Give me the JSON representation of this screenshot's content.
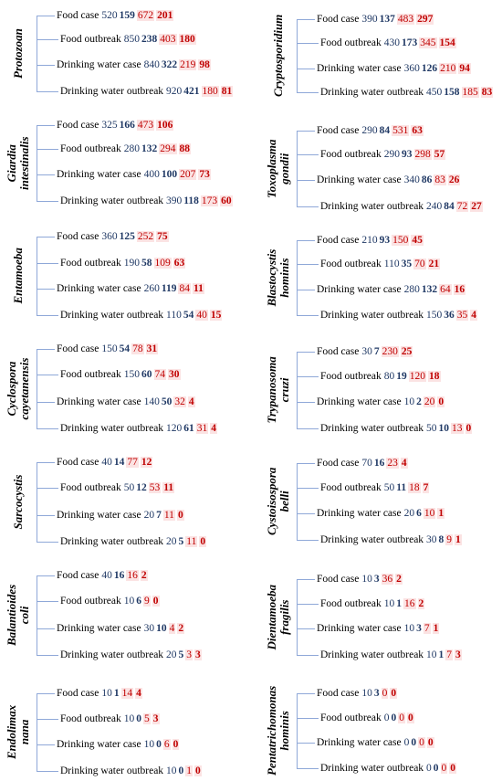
{
  "colors": {
    "line": "#8fa8d8",
    "value_plain": "#1f3864",
    "value_bold": "#1f3864",
    "value_red": "#c00000",
    "value_red_bold": "#c00000",
    "highlight": "#fbe3e3"
  },
  "panels": [
    {
      "name": [
        "Protozoan"
      ],
      "rows": [
        {
          "label": "Food case",
          "values": [
            "520",
            "159",
            "672",
            "201"
          ]
        },
        {
          "label": "Food outbreak",
          "values": [
            "850",
            "238",
            "403",
            "180"
          ]
        },
        {
          "label": "Drinking water case",
          "values": [
            "840",
            "322",
            "219",
            "98"
          ]
        },
        {
          "label": "Drinking water outbreak",
          "values": [
            "920",
            "421",
            "180",
            "81"
          ]
        }
      ]
    },
    {
      "name": [
        "Cryptosporidium"
      ],
      "rows": [
        {
          "label": "Food case",
          "values": [
            "390",
            "137",
            "483",
            "297"
          ]
        },
        {
          "label": "Food outbreak",
          "values": [
            "430",
            "173",
            "345",
            "154"
          ]
        },
        {
          "label": "Drinking water case",
          "values": [
            "360",
            "126",
            "210",
            "94"
          ]
        },
        {
          "label": "Drinking water outbreak",
          "values": [
            "450",
            "158",
            "185",
            "83"
          ]
        }
      ]
    },
    {
      "name": [
        "Giardia",
        "intestinalis"
      ],
      "rows": [
        {
          "label": "Food case",
          "values": [
            "325",
            "166",
            "473",
            "106"
          ]
        },
        {
          "label": "Food outbreak",
          "values": [
            "280",
            "132",
            "294",
            "88"
          ]
        },
        {
          "label": "Drinking water case",
          "values": [
            "400",
            "100",
            "207",
            "73"
          ]
        },
        {
          "label": "Drinking water outbreak",
          "values": [
            "390",
            "118",
            "173",
            "60"
          ]
        }
      ]
    },
    {
      "name": [
        "Toxoplasma",
        "gondii"
      ],
      "rows": [
        {
          "label": "Food case",
          "values": [
            "290",
            "84",
            "531",
            "63"
          ]
        },
        {
          "label": "Food outbreak",
          "values": [
            "290",
            "93",
            "298",
            "57"
          ]
        },
        {
          "label": "Drinking water case",
          "values": [
            "340",
            "86",
            "83",
            "26"
          ]
        },
        {
          "label": "Drinking water outbreak",
          "values": [
            "240",
            "84",
            "72",
            "27"
          ]
        }
      ]
    },
    {
      "name": [
        "Entamoeba"
      ],
      "rows": [
        {
          "label": "Food case",
          "values": [
            "360",
            "125",
            "252",
            "75"
          ]
        },
        {
          "label": "Food outbreak",
          "values": [
            "190",
            "58",
            "109",
            "63"
          ]
        },
        {
          "label": "Drinking water case",
          "values": [
            "260",
            "119",
            "84",
            "11"
          ]
        },
        {
          "label": "Drinking water outbreak",
          "values": [
            "110",
            "54",
            "40",
            "15"
          ]
        }
      ]
    },
    {
      "name": [
        "Blastocystis",
        "hominis"
      ],
      "rows": [
        {
          "label": "Food case",
          "values": [
            "210",
            "93",
            "150",
            "45"
          ]
        },
        {
          "label": "Food outbreak",
          "values": [
            "110",
            "35",
            "70",
            "21"
          ]
        },
        {
          "label": "Drinking water case",
          "values": [
            "280",
            "132",
            "64",
            "16"
          ]
        },
        {
          "label": "Drinking water outbreak",
          "values": [
            "150",
            "36",
            "35",
            "4"
          ]
        }
      ]
    },
    {
      "name": [
        "Cyclospora",
        "cayetanensis"
      ],
      "rows": [
        {
          "label": "Food case",
          "values": [
            "150",
            "54",
            "78",
            "31"
          ]
        },
        {
          "label": "Food outbreak",
          "values": [
            "150",
            "60",
            "74",
            "30"
          ]
        },
        {
          "label": "Drinking water case",
          "values": [
            "140",
            "50",
            "32",
            "4"
          ]
        },
        {
          "label": "Drinking water outbreak",
          "values": [
            "120",
            "61",
            "31",
            "4"
          ]
        }
      ]
    },
    {
      "name": [
        "Trypanosoma",
        "cruzi"
      ],
      "rows": [
        {
          "label": "Food case",
          "values": [
            "30",
            "7",
            "230",
            "25"
          ]
        },
        {
          "label": "Food outbreak",
          "values": [
            "80",
            "19",
            "120",
            "18"
          ]
        },
        {
          "label": "Drinking water case",
          "values": [
            "10",
            "2",
            "20",
            "0"
          ]
        },
        {
          "label": "Drinking water outbreak",
          "values": [
            "50",
            "10",
            "13",
            "0"
          ]
        }
      ]
    },
    {
      "name": [
        "Sarcocystis"
      ],
      "rows": [
        {
          "label": "Food case",
          "values": [
            "40",
            "14",
            "77",
            "12"
          ]
        },
        {
          "label": "Food outbreak",
          "values": [
            "50",
            "12",
            "53",
            "11"
          ]
        },
        {
          "label": "Drinking water case",
          "values": [
            "20",
            "7",
            "11",
            "0"
          ]
        },
        {
          "label": "Drinking water outbreak",
          "values": [
            "20",
            "5",
            "11",
            "0"
          ]
        }
      ]
    },
    {
      "name": [
        "Cystoisospora",
        "belli"
      ],
      "rows": [
        {
          "label": "Food case",
          "values": [
            "70",
            "16",
            "23",
            "4"
          ]
        },
        {
          "label": "Food outbreak",
          "values": [
            "50",
            "11",
            "18",
            "7"
          ]
        },
        {
          "label": "Drinking water case",
          "values": [
            "20",
            "6",
            "10",
            "1"
          ]
        },
        {
          "label": "Drinking water outbreak",
          "values": [
            "30",
            "8",
            "9",
            "1"
          ]
        }
      ]
    },
    {
      "name": [
        "Balantioides",
        "coli"
      ],
      "rows": [
        {
          "label": "Food case",
          "values": [
            "40",
            "16",
            "16",
            "2"
          ]
        },
        {
          "label": "Food outbreak",
          "values": [
            "10",
            "6",
            "9",
            "0"
          ]
        },
        {
          "label": "Drinking water case",
          "values": [
            "30",
            "10",
            "4",
            "2"
          ]
        },
        {
          "label": "Drinking water outbreak",
          "values": [
            "20",
            "5",
            "3",
            "3"
          ]
        }
      ]
    },
    {
      "name": [
        "Dientamoeba",
        "fragilis"
      ],
      "rows": [
        {
          "label": "Food case",
          "values": [
            "10",
            "3",
            "36",
            "2"
          ]
        },
        {
          "label": "Food outbreak",
          "values": [
            "10",
            "1",
            "16",
            "2"
          ]
        },
        {
          "label": "Drinking water case",
          "values": [
            "10",
            "3",
            "7",
            "1"
          ]
        },
        {
          "label": "Drinking water outbreak",
          "values": [
            "10",
            "1",
            "7",
            "3"
          ]
        }
      ]
    },
    {
      "name": [
        "Endolimax",
        "nana"
      ],
      "rows": [
        {
          "label": "Food case",
          "values": [
            "10",
            "1",
            "14",
            "4"
          ]
        },
        {
          "label": "Food outbreak",
          "values": [
            "10",
            "0",
            "5",
            "3"
          ]
        },
        {
          "label": "Drinking water case",
          "values": [
            "10",
            "0",
            "6",
            "0"
          ]
        },
        {
          "label": "Drinking water outbreak",
          "values": [
            "10",
            "0",
            "1",
            "0"
          ]
        }
      ]
    },
    {
      "name": [
        "Pentatrichomonas",
        "hominis"
      ],
      "rows": [
        {
          "label": "Food case",
          "values": [
            "10",
            "3",
            "0",
            "0"
          ]
        },
        {
          "label": "Food outbreak",
          "values": [
            "0",
            "0",
            "0",
            "0"
          ]
        },
        {
          "label": "Drinking water case",
          "values": [
            "0",
            "0",
            "0",
            "0"
          ]
        },
        {
          "label": "Drinking water outbreak",
          "values": [
            "0",
            "0",
            "0",
            "0"
          ]
        }
      ]
    }
  ]
}
